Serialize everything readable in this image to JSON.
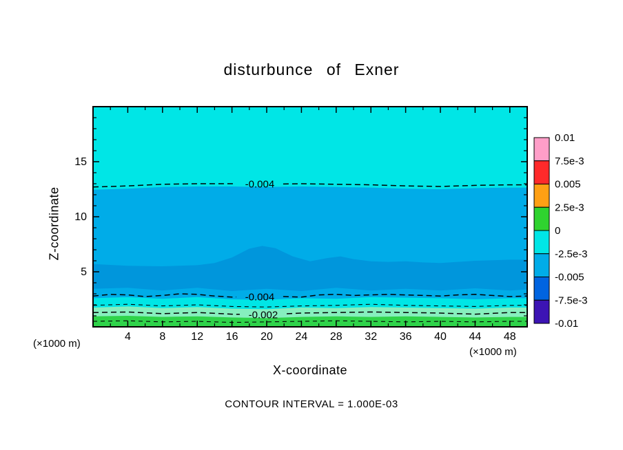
{
  "title": "disturbunce of Exner",
  "axes": {
    "x_label": "X-coordinate",
    "z_label": "Z-coordinate",
    "x_unit_left": "(×1000 m)",
    "x_unit_right": "(×1000 m)"
  },
  "caption": "CONTOUR INTERVAL = 1.000E-03",
  "chart_data": {
    "type": "heatmap",
    "subtype": "filled-contour",
    "title": "disturbunce of Exner",
    "xlabel": "X-coordinate",
    "ylabel": "Z-coordinate",
    "x_unit": "(×1000 m)",
    "xlim": [
      0,
      50
    ],
    "zlim": [
      0,
      20
    ],
    "x_tick_labels": [
      4,
      8,
      12,
      16,
      20,
      24,
      28,
      32,
      36,
      40,
      44,
      48
    ],
    "x_minor_step": 2,
    "z_tick_labels": [
      5,
      10,
      15
    ],
    "z_minor_step": 1,
    "contour_interval": "1.000E-03",
    "colorbar": {
      "tick_labels": [
        "0.01",
        "7.5e-3",
        "0.005",
        "2.5e-3",
        "0",
        "-2.5e-3",
        "-0.005",
        "-7.5e-3",
        "-0.01"
      ],
      "segment_colors": [
        "#FF9EC8",
        "#FF2A2A",
        "#FFA014",
        "#2FD32F",
        "#00E6E6",
        "#00ACE8",
        "#0064E0",
        "#3C14B4"
      ]
    },
    "fill_bands": [
      {
        "name": "background_cyan",
        "level": "-2.5e-3 to 0",
        "color": "#00E6E6"
      },
      {
        "name": "mid_blue",
        "level": "-5e-3 to -2.5e-3",
        "color": "#00ACE8",
        "upper": [
          [
            0,
            12.45
          ],
          [
            4,
            12.55
          ],
          [
            8,
            12.7
          ],
          [
            12,
            12.75
          ],
          [
            16,
            12.75
          ],
          [
            20,
            12.7
          ],
          [
            24,
            12.75
          ],
          [
            28,
            12.7
          ],
          [
            32,
            12.65
          ],
          [
            36,
            12.55
          ],
          [
            40,
            12.5
          ],
          [
            44,
            12.6
          ],
          [
            48,
            12.65
          ],
          [
            50,
            12.65
          ]
        ],
        "lower": [
          [
            0,
            2.6
          ],
          [
            4,
            2.7
          ],
          [
            8,
            2.55
          ],
          [
            12,
            2.7
          ],
          [
            16,
            2.5
          ],
          [
            20,
            2.45
          ],
          [
            24,
            2.6
          ],
          [
            28,
            2.55
          ],
          [
            32,
            2.7
          ],
          [
            36,
            2.65
          ],
          [
            40,
            2.6
          ],
          [
            44,
            2.5
          ],
          [
            48,
            2.6
          ],
          [
            50,
            2.6
          ]
        ]
      },
      {
        "name": "dark_blue_core",
        "level": "-7.5e-3 to -5e-3",
        "color": "#0096DC",
        "upper": [
          [
            0,
            5.7
          ],
          [
            4,
            5.55
          ],
          [
            8,
            5.5
          ],
          [
            12,
            5.6
          ],
          [
            14,
            5.8
          ],
          [
            16,
            6.3
          ],
          [
            18,
            7.1
          ],
          [
            19.5,
            7.35
          ],
          [
            21,
            7.15
          ],
          [
            23,
            6.4
          ],
          [
            25,
            5.95
          ],
          [
            27,
            6.25
          ],
          [
            28.5,
            6.4
          ],
          [
            30,
            6.15
          ],
          [
            32,
            5.95
          ],
          [
            34,
            5.9
          ],
          [
            36,
            5.95
          ],
          [
            38,
            5.85
          ],
          [
            40,
            5.8
          ],
          [
            42,
            5.9
          ],
          [
            44,
            6.0
          ],
          [
            46,
            6.05
          ],
          [
            48,
            6.1
          ],
          [
            50,
            6.1
          ]
        ],
        "lower": [
          [
            0,
            3.45
          ],
          [
            4,
            3.55
          ],
          [
            8,
            3.3
          ],
          [
            12,
            3.55
          ],
          [
            16,
            3.25
          ],
          [
            20,
            3.45
          ],
          [
            24,
            3.25
          ],
          [
            28,
            3.55
          ],
          [
            32,
            3.3
          ],
          [
            36,
            3.45
          ],
          [
            40,
            3.3
          ],
          [
            44,
            3.5
          ],
          [
            48,
            3.3
          ],
          [
            50,
            3.4
          ]
        ]
      },
      {
        "name": "pale_green_low",
        "level": "0 to 2.5e-3",
        "color": "#86EFBE",
        "upper": [
          [
            0,
            1.75
          ],
          [
            4,
            1.85
          ],
          [
            8,
            1.7
          ],
          [
            12,
            1.8
          ],
          [
            16,
            1.65
          ],
          [
            20,
            1.6
          ],
          [
            24,
            1.75
          ],
          [
            28,
            1.7
          ],
          [
            32,
            1.8
          ],
          [
            36,
            1.75
          ],
          [
            40,
            1.7
          ],
          [
            44,
            1.65
          ],
          [
            48,
            1.75
          ],
          [
            50,
            1.75
          ]
        ]
      },
      {
        "name": "green_surface",
        "level": "2.5e-3 to 5e-3",
        "color": "#2FD34A",
        "upper": [
          [
            0,
            0.95
          ],
          [
            4,
            1.0
          ],
          [
            8,
            0.9
          ],
          [
            12,
            0.95
          ],
          [
            16,
            0.85
          ],
          [
            20,
            0.8
          ],
          [
            24,
            0.9
          ],
          [
            28,
            0.95
          ],
          [
            32,
            0.9
          ],
          [
            36,
            0.95
          ],
          [
            40,
            0.9
          ],
          [
            44,
            0.85
          ],
          [
            48,
            0.9
          ],
          [
            50,
            0.9
          ]
        ]
      }
    ],
    "contour_lines": [
      {
        "label": "-0.004",
        "labeled": true,
        "label_x": 19.2,
        "points": [
          [
            0,
            12.7
          ],
          [
            4,
            12.8
          ],
          [
            8,
            12.95
          ],
          [
            12,
            13.0
          ],
          [
            16,
            13.0
          ],
          [
            20,
            12.95
          ],
          [
            24,
            13.0
          ],
          [
            28,
            12.95
          ],
          [
            32,
            12.9
          ],
          [
            36,
            12.8
          ],
          [
            40,
            12.75
          ],
          [
            44,
            12.85
          ],
          [
            48,
            12.9
          ],
          [
            50,
            12.9
          ]
        ]
      },
      {
        "label": "-0.004",
        "labeled": true,
        "label_x": 19.2,
        "points": [
          [
            0,
            2.8
          ],
          [
            2,
            2.95
          ],
          [
            4,
            2.9
          ],
          [
            6,
            2.75
          ],
          [
            8,
            2.85
          ],
          [
            10,
            3.0
          ],
          [
            12,
            2.95
          ],
          [
            14,
            2.8
          ],
          [
            16,
            2.7
          ],
          [
            18,
            2.75
          ],
          [
            20,
            2.7
          ],
          [
            22,
            2.75
          ],
          [
            24,
            2.7
          ],
          [
            26,
            2.9
          ],
          [
            28,
            2.95
          ],
          [
            30,
            2.85
          ],
          [
            32,
            2.9
          ],
          [
            34,
            2.95
          ],
          [
            36,
            2.9
          ],
          [
            38,
            2.85
          ],
          [
            40,
            2.8
          ],
          [
            42,
            2.9
          ],
          [
            44,
            2.95
          ],
          [
            46,
            2.85
          ],
          [
            48,
            2.75
          ],
          [
            50,
            2.8
          ]
        ]
      },
      {
        "label": "",
        "labeled": false,
        "points": [
          [
            0,
            1.95
          ],
          [
            4,
            2.05
          ],
          [
            8,
            1.9
          ],
          [
            12,
            2.0
          ],
          [
            16,
            1.85
          ],
          [
            20,
            1.8
          ],
          [
            24,
            1.9
          ],
          [
            28,
            1.95
          ],
          [
            32,
            2.05
          ],
          [
            36,
            1.95
          ],
          [
            40,
            1.9
          ],
          [
            44,
            1.85
          ],
          [
            48,
            1.95
          ],
          [
            50,
            1.95
          ]
        ]
      },
      {
        "label": "-0.002",
        "labeled": true,
        "label_x": 19.6,
        "points": [
          [
            0,
            1.3
          ],
          [
            4,
            1.35
          ],
          [
            8,
            1.2
          ],
          [
            12,
            1.3
          ],
          [
            16,
            1.15
          ],
          [
            20,
            1.1
          ],
          [
            24,
            1.25
          ],
          [
            28,
            1.3
          ],
          [
            32,
            1.35
          ],
          [
            36,
            1.3
          ],
          [
            40,
            1.25
          ],
          [
            44,
            1.15
          ],
          [
            48,
            1.3
          ],
          [
            50,
            1.3
          ]
        ]
      },
      {
        "label": "",
        "labeled": false,
        "points": [
          [
            0,
            0.5
          ],
          [
            4,
            0.55
          ],
          [
            8,
            0.45
          ],
          [
            12,
            0.5
          ],
          [
            16,
            0.4
          ],
          [
            20,
            0.45
          ],
          [
            24,
            0.5
          ],
          [
            28,
            0.55
          ],
          [
            32,
            0.5
          ],
          [
            36,
            0.45
          ],
          [
            40,
            0.5
          ],
          [
            44,
            0.45
          ],
          [
            48,
            0.5
          ],
          [
            50,
            0.5
          ]
        ]
      }
    ]
  }
}
